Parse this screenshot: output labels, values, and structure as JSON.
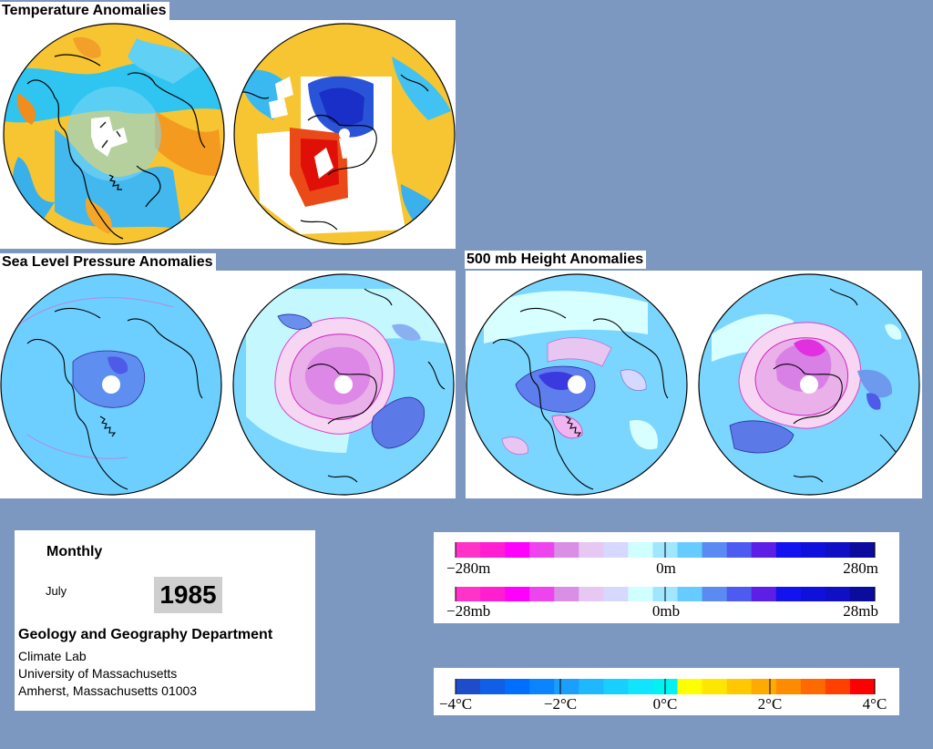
{
  "headings": {
    "temperature": "Temperature Anomalies",
    "slp": "Sea Level Pressure Anomalies",
    "height500": "500 mb Height Anomalies"
  },
  "info": {
    "period": "Monthly",
    "month": "July",
    "year": "1985",
    "department": "Geology and Geography Department",
    "lab": "Climate Lab",
    "university": "University of Massachusetts",
    "address": "Amherst, Massachusetts 01003"
  },
  "legends": {
    "height_scale": {
      "min_label": "−280m",
      "mid_label": "0m",
      "max_label": "280m",
      "colors": [
        "#ff33c8",
        "#ff1fd0",
        "#ff00ff",
        "#ee44ee",
        "#d98fe6",
        "#e6c8f2",
        "#d6d8ff",
        "#cfffff",
        "#a0e6ff",
        "#66ccff",
        "#5b8bf2",
        "#4e5bf0",
        "#5d1ee6",
        "#1313f0",
        "#1010dd",
        "#0f0fc4",
        "#0b0b9e"
      ]
    },
    "pressure_scale": {
      "min_label": "−28mb",
      "mid_label": "0mb",
      "max_label": "28mb",
      "colors": [
        "#ff33c8",
        "#ff1fd0",
        "#ff00ff",
        "#ee44ee",
        "#d98fe6",
        "#e6c8f2",
        "#d6d8ff",
        "#cfffff",
        "#a0e6ff",
        "#66ccff",
        "#5b8bf2",
        "#4e5bf0",
        "#5d1ee6",
        "#1313f0",
        "#1010dd",
        "#0f0fc4",
        "#0b0b9e"
      ]
    },
    "temperature_scale": {
      "labels": [
        "−4°C",
        "−2°C",
        "0°C",
        "2°C",
        "4°C"
      ],
      "colors": [
        "#1f4cc8",
        "#0f5fe8",
        "#006eff",
        "#0a84ff",
        "#1a9fff",
        "#1fb8ff",
        "#19cfff",
        "#10e4ff",
        "#00f2f2",
        "#ffff00",
        "#ffe600",
        "#ffc800",
        "#ffaa00",
        "#ff8c00",
        "#ff6a00",
        "#ff4000",
        "#ff0000"
      ]
    }
  },
  "maps": [
    {
      "id": "temp-nh",
      "type": "temperature",
      "hemisphere": "north"
    },
    {
      "id": "temp-sh",
      "type": "temperature",
      "hemisphere": "south"
    },
    {
      "id": "slp-nh",
      "type": "slp",
      "hemisphere": "north"
    },
    {
      "id": "slp-sh",
      "type": "slp",
      "hemisphere": "south"
    },
    {
      "id": "z500-nh",
      "type": "height500",
      "hemisphere": "north"
    },
    {
      "id": "z500-sh",
      "type": "height500",
      "hemisphere": "south"
    }
  ]
}
